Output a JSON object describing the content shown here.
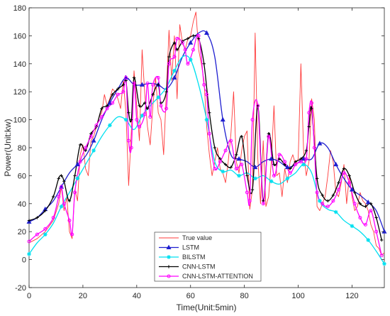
{
  "chart_data": {
    "type": "line",
    "title": "",
    "xlabel": "Time(Unit:5min)",
    "ylabel": "Power(Unit:kw)",
    "xlim": [
      0,
      132
    ],
    "ylim": [
      -20,
      180
    ],
    "xticks": [
      0,
      20,
      40,
      60,
      80,
      100,
      120
    ],
    "yticks": [
      -20,
      0,
      20,
      40,
      60,
      80,
      100,
      120,
      140,
      160,
      180
    ],
    "grid": false,
    "legend_position": "bottom-center",
    "series": [
      {
        "name": "True value",
        "color": "#ff3b3b",
        "marker": "none",
        "x": [
          0,
          3,
          6,
          9,
          11,
          12,
          13,
          14,
          15,
          16,
          17,
          18,
          19,
          20,
          21,
          22,
          23,
          24,
          25,
          26,
          27,
          28,
          29,
          30,
          31,
          32,
          33,
          34,
          35,
          36,
          37,
          38,
          39,
          40,
          41,
          42,
          43,
          44,
          45,
          46,
          47,
          48,
          49,
          50,
          51,
          52,
          53,
          54,
          55,
          56,
          57,
          58,
          59,
          60,
          61,
          62,
          63,
          64,
          65,
          66,
          67,
          68,
          69,
          70,
          71,
          72,
          73,
          74,
          75,
          76,
          77,
          78,
          79,
          80,
          81,
          82,
          83,
          84,
          85,
          86,
          87,
          88,
          89,
          90,
          91,
          92,
          93,
          94,
          95,
          96,
          97,
          98,
          99,
          100,
          101,
          102,
          103,
          104,
          105,
          106,
          107,
          108,
          109,
          110,
          111,
          112,
          113,
          114,
          115,
          116,
          117,
          118,
          119,
          120,
          121,
          122,
          123,
          124,
          125,
          126,
          127,
          128,
          129,
          130,
          131,
          132
        ],
        "values": [
          12,
          15,
          20,
          28,
          40,
          52,
          35,
          45,
          20,
          15,
          50,
          42,
          75,
          82,
          65,
          60,
          85,
          88,
          95,
          102,
          105,
          118,
          110,
          115,
          122,
          120,
          115,
          108,
          128,
          105,
          53,
          92,
          135,
          110,
          85,
          150,
          118,
          95,
          82,
          110,
          130,
          105,
          100,
          75,
          120,
          164,
          128,
          160,
          115,
          168,
          155,
          150,
          158,
          160,
          170,
          177,
          150,
          140,
          128,
          95,
          75,
          60,
          70,
          80,
          65,
          62,
          55,
          70,
          90,
          120,
          70,
          62,
          78,
          88,
          92,
          36,
          50,
          162,
          72,
          40,
          85,
          38,
          45,
          70,
          110,
          60,
          62,
          45,
          65,
          55,
          70,
          75,
          68,
          72,
          140,
          78,
          60,
          70,
          115,
          100,
          38,
          35,
          40,
          45,
          60,
          78,
          70,
          48,
          45,
          55,
          68,
          40,
          60,
          45,
          35,
          38,
          48,
          42,
          40,
          35,
          25,
          20,
          10,
          8,
          3,
          5
        ]
      },
      {
        "name": "LSTM",
        "color": "#1f1fd0",
        "marker": "triangle",
        "x": [
          0,
          3,
          6,
          9,
          12,
          15,
          18,
          21,
          24,
          27,
          30,
          33,
          36,
          39,
          42,
          45,
          48,
          51,
          54,
          57,
          60,
          63,
          66,
          69,
          72,
          75,
          78,
          81,
          84,
          87,
          90,
          93,
          96,
          99,
          102,
          105,
          108,
          111,
          114,
          117,
          120,
          123,
          126,
          129,
          132
        ],
        "values": [
          27,
          30,
          36,
          42,
          52,
          62,
          68,
          74,
          85,
          100,
          112,
          122,
          130,
          125,
          125,
          126,
          125,
          122,
          130,
          145,
          155,
          162,
          162,
          145,
          100,
          75,
          72,
          70,
          66,
          70,
          72,
          70,
          66,
          68,
          72,
          72,
          83,
          80,
          68,
          58,
          50,
          46,
          41,
          35,
          20
        ]
      },
      {
        "name": "BILSTM",
        "color": "#00e0f0",
        "marker": "star",
        "x": [
          0,
          3,
          6,
          9,
          12,
          15,
          18,
          21,
          24,
          27,
          30,
          33,
          36,
          39,
          42,
          45,
          48,
          51,
          54,
          57,
          60,
          63,
          66,
          69,
          72,
          75,
          78,
          81,
          84,
          87,
          90,
          93,
          96,
          99,
          102,
          105,
          108,
          111,
          114,
          117,
          120,
          123,
          126,
          129,
          132
        ],
        "values": [
          4,
          12,
          18,
          26,
          38,
          48,
          58,
          68,
          78,
          88,
          96,
          102,
          100,
          93,
          103,
          110,
          116,
          123,
          135,
          145,
          143,
          125,
          100,
          70,
          63,
          64,
          60,
          62,
          58,
          60,
          56,
          54,
          58,
          62,
          68,
          62,
          42,
          36,
          34,
          28,
          24,
          20,
          14,
          6,
          -3
        ]
      },
      {
        "name": "CNN-LSTM",
        "color": "#000000",
        "marker": "plus",
        "x": [
          0,
          3,
          6,
          9,
          11,
          12,
          13,
          15,
          17,
          19,
          21,
          23,
          25,
          27,
          29,
          31,
          33,
          35,
          36,
          37,
          38,
          39,
          41,
          43,
          44,
          46,
          48,
          49,
          51,
          52,
          54,
          55,
          57,
          59,
          61,
          63,
          65,
          67,
          69,
          71,
          73,
          75,
          77,
          79,
          81,
          83,
          85,
          87,
          89,
          91,
          93,
          95,
          97,
          99,
          101,
          103,
          104,
          105,
          107,
          109,
          111,
          113,
          115,
          117,
          119,
          121,
          123,
          125,
          127,
          129,
          131
        ],
        "values": [
          28,
          30,
          35,
          45,
          58,
          60,
          56,
          42,
          60,
          82,
          78,
          90,
          95,
          108,
          110,
          118,
          122,
          125,
          128,
          105,
          100,
          130,
          110,
          112,
          108,
          118,
          125,
          112,
          120,
          145,
          155,
          150,
          156,
          158,
          160,
          158,
          140,
          105,
          80,
          72,
          68,
          66,
          75,
          88,
          60,
          50,
          110,
          42,
          90,
          68,
          72,
          68,
          65,
          70,
          72,
          78,
          95,
          108,
          58,
          46,
          42,
          46,
          55,
          65,
          60,
          48,
          40,
          38,
          40,
          30,
          14
        ]
      },
      {
        "name": "CNN-LSTM-ATTENTION",
        "color": "#ff00ff",
        "marker": "circle",
        "x": [
          0,
          3,
          6,
          9,
          11,
          12,
          13,
          15,
          16,
          17,
          19,
          21,
          23,
          25,
          27,
          29,
          31,
          33,
          35,
          36,
          37,
          38,
          39,
          40,
          41,
          43,
          44,
          45,
          46,
          48,
          49,
          51,
          52,
          54,
          55,
          57,
          58,
          59,
          61,
          63,
          65,
          66,
          67,
          69,
          71,
          73,
          75,
          77,
          79,
          81,
          82,
          83,
          85,
          87,
          89,
          91,
          93,
          95,
          97,
          99,
          101,
          103,
          104,
          105,
          106,
          107,
          109,
          111,
          113,
          115,
          117,
          119,
          121,
          123,
          125,
          127,
          129,
          131
        ],
        "values": [
          13,
          18,
          22,
          30,
          45,
          52,
          40,
          28,
          18,
          48,
          70,
          80,
          88,
          96,
          102,
          108,
          112,
          118,
          120,
          130,
          85,
          80,
          126,
          100,
          95,
          104,
          126,
          102,
          125,
          130,
          110,
          108,
          140,
          145,
          158,
          155,
          150,
          140,
          150,
          160,
          125,
          118,
          90,
          65,
          70,
          78,
          85,
          65,
          68,
          48,
          42,
          100,
          110,
          40,
          88,
          60,
          75,
          70,
          62,
          68,
          70,
          72,
          105,
          112,
          80,
          48,
          40,
          38,
          42,
          50,
          62,
          55,
          40,
          30,
          25,
          35,
          20,
          3
        ]
      }
    ]
  }
}
